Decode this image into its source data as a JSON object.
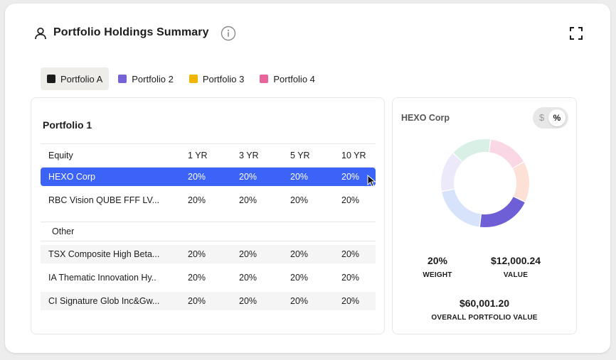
{
  "header": {
    "title": "Portfolio Holdings Summary",
    "user_icon": "user-icon",
    "info_icon": "info-icon",
    "expand_icon": "expand-icon"
  },
  "tabs": [
    {
      "label": "Portfolio A",
      "color": "#1c1c1c",
      "active": true
    },
    {
      "label": "Portfolio 2",
      "color": "#7464d8",
      "active": false
    },
    {
      "label": "Portfolio 3",
      "color": "#f2b600",
      "active": false
    },
    {
      "label": "Portfolio 4",
      "color": "#e8649a",
      "active": false
    }
  ],
  "table": {
    "title": "Portfolio 1",
    "columns": [
      "Equity",
      "1 YR",
      "3 YR",
      "5 YR",
      "10 YR"
    ],
    "equity_rows": [
      {
        "name": "HEXO Corp",
        "y1": "20%",
        "y3": "20%",
        "y5": "20%",
        "y10": "20%",
        "selected": true
      },
      {
        "name": "RBC Vision QUBE FFF LV...",
        "y1": "20%",
        "y3": "20%",
        "y5": "20%",
        "y10": "20%"
      }
    ],
    "other_label": "Other",
    "other_rows": [
      {
        "name": "TSX Composite High Beta...",
        "y1": "20%",
        "y3": "20%",
        "y5": "20%",
        "y10": "20%"
      },
      {
        "name": "IA Thematic Innovation Hy..",
        "y1": "20%",
        "y3": "20%",
        "y5": "20%",
        "y10": "20%"
      },
      {
        "name": "CI Signature Glob Inc&Gw...",
        "y1": "20%",
        "y3": "20%",
        "y5": "20%",
        "y10": "20%"
      }
    ]
  },
  "detail": {
    "title": "HEXO Corp",
    "toggle": {
      "dollar": "$",
      "percent": "%",
      "selected": "percent"
    },
    "weight_value": "20%",
    "weight_label": "WEIGHT",
    "value_value": "$12,000.24",
    "value_label": "VALUE",
    "overall_value": "$60,001.20",
    "overall_label": "OVERALL PORTFOLIO VALUE",
    "donut_segments": [
      {
        "fraction": 0.2,
        "color": "#6f5fd6"
      },
      {
        "fraction": 0.2,
        "color": "#d6e3fb"
      },
      {
        "fraction": 0.15,
        "color": "#ece9fb"
      },
      {
        "fraction": 0.15,
        "color": "#d9f0e6"
      },
      {
        "fraction": 0.15,
        "color": "#fad7e5"
      },
      {
        "fraction": 0.15,
        "color": "#fde0d6"
      }
    ]
  },
  "colors": {
    "accent": "#3b63f7"
  }
}
